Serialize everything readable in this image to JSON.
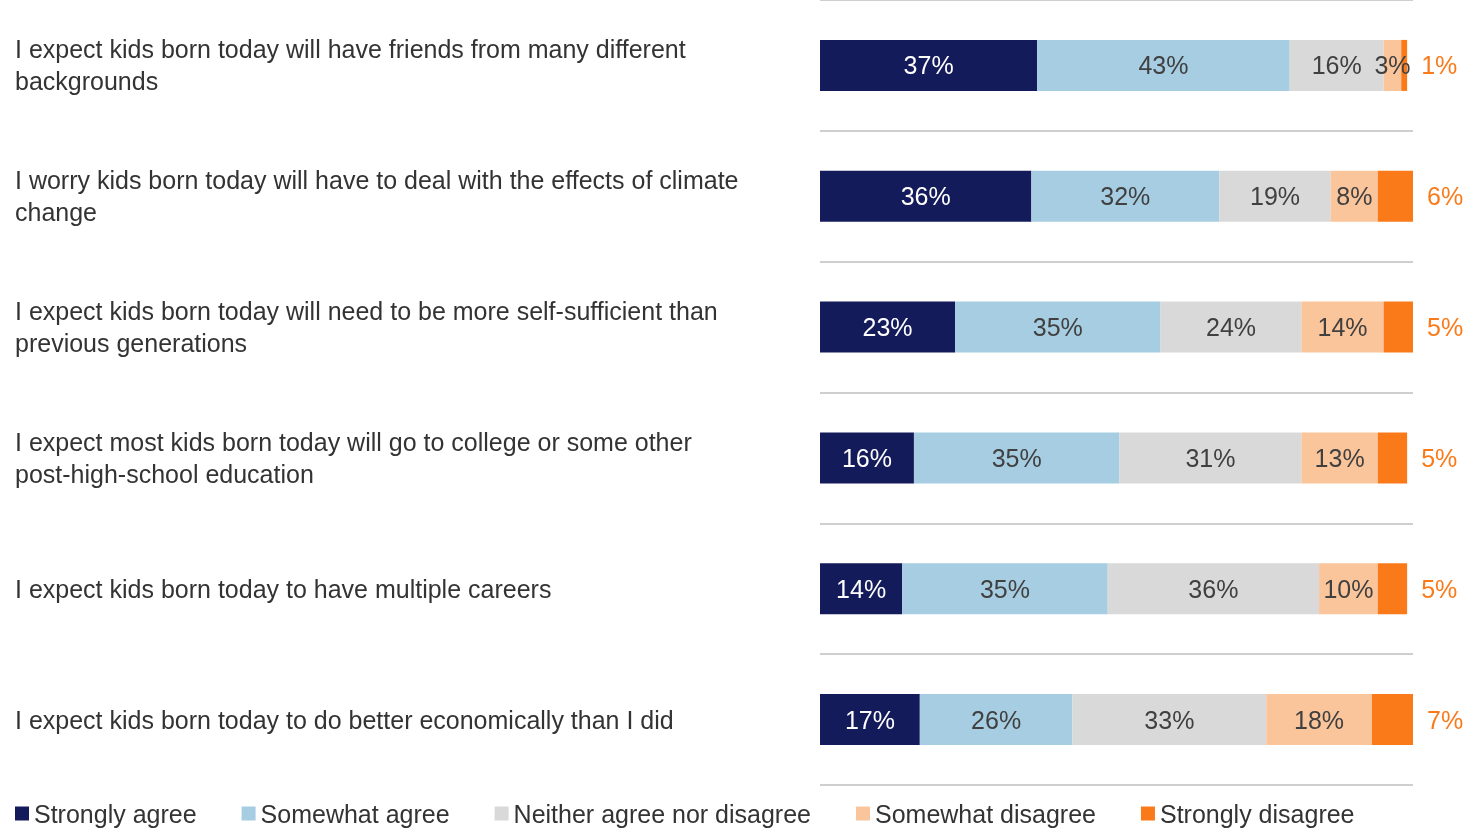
{
  "chart_data": {
    "type": "bar",
    "orientation": "horizontal",
    "stacked": true,
    "categories": [
      "I expect kids born today will have friends from many different backgrounds",
      "I worry kids born today will have to deal with the effects of climate change",
      "I expect kids born today will need to be more self-sufficient than previous generations",
      "I expect most kids born today will go to college or some other post-high-school education",
      "I expect kids born today to have multiple careers",
      "I expect kids born today to do better economically than I did"
    ],
    "series": [
      {
        "name": "Strongly agree",
        "color": "#141b5a",
        "values": [
          37,
          36,
          23,
          16,
          14,
          17
        ],
        "value_labels": [
          "37%",
          "36%",
          "23%",
          "16%",
          "14%",
          "17%"
        ]
      },
      {
        "name": "Somewhat agree",
        "color": "#a6cde1",
        "values": [
          43,
          32,
          35,
          35,
          35,
          26
        ],
        "value_labels": [
          "43%",
          "32%",
          "35%",
          "35%",
          "35%",
          "26%"
        ]
      },
      {
        "name": "Neither agree nor disagree",
        "color": "#d9d9d9",
        "values": [
          16,
          19,
          24,
          31,
          36,
          33
        ],
        "value_labels": [
          "16%",
          "19%",
          "24%",
          "31%",
          "36%",
          "33%"
        ]
      },
      {
        "name": "Somewhat disagree",
        "color": "#fbc59b",
        "values": [
          3,
          8,
          14,
          13,
          10,
          18
        ],
        "value_labels": [
          "3%",
          "8%",
          "14%",
          "13%",
          "10%",
          "18%"
        ]
      },
      {
        "name": "Strongly disagree",
        "color": "#fa7a1a",
        "values": [
          1,
          6,
          5,
          5,
          5,
          7
        ],
        "value_labels": [
          "1%",
          "6%",
          "5%",
          "5%",
          "5%",
          "7%"
        ]
      }
    ],
    "grid": "y",
    "legend": "bottom",
    "tick_labels": "y"
  }
}
